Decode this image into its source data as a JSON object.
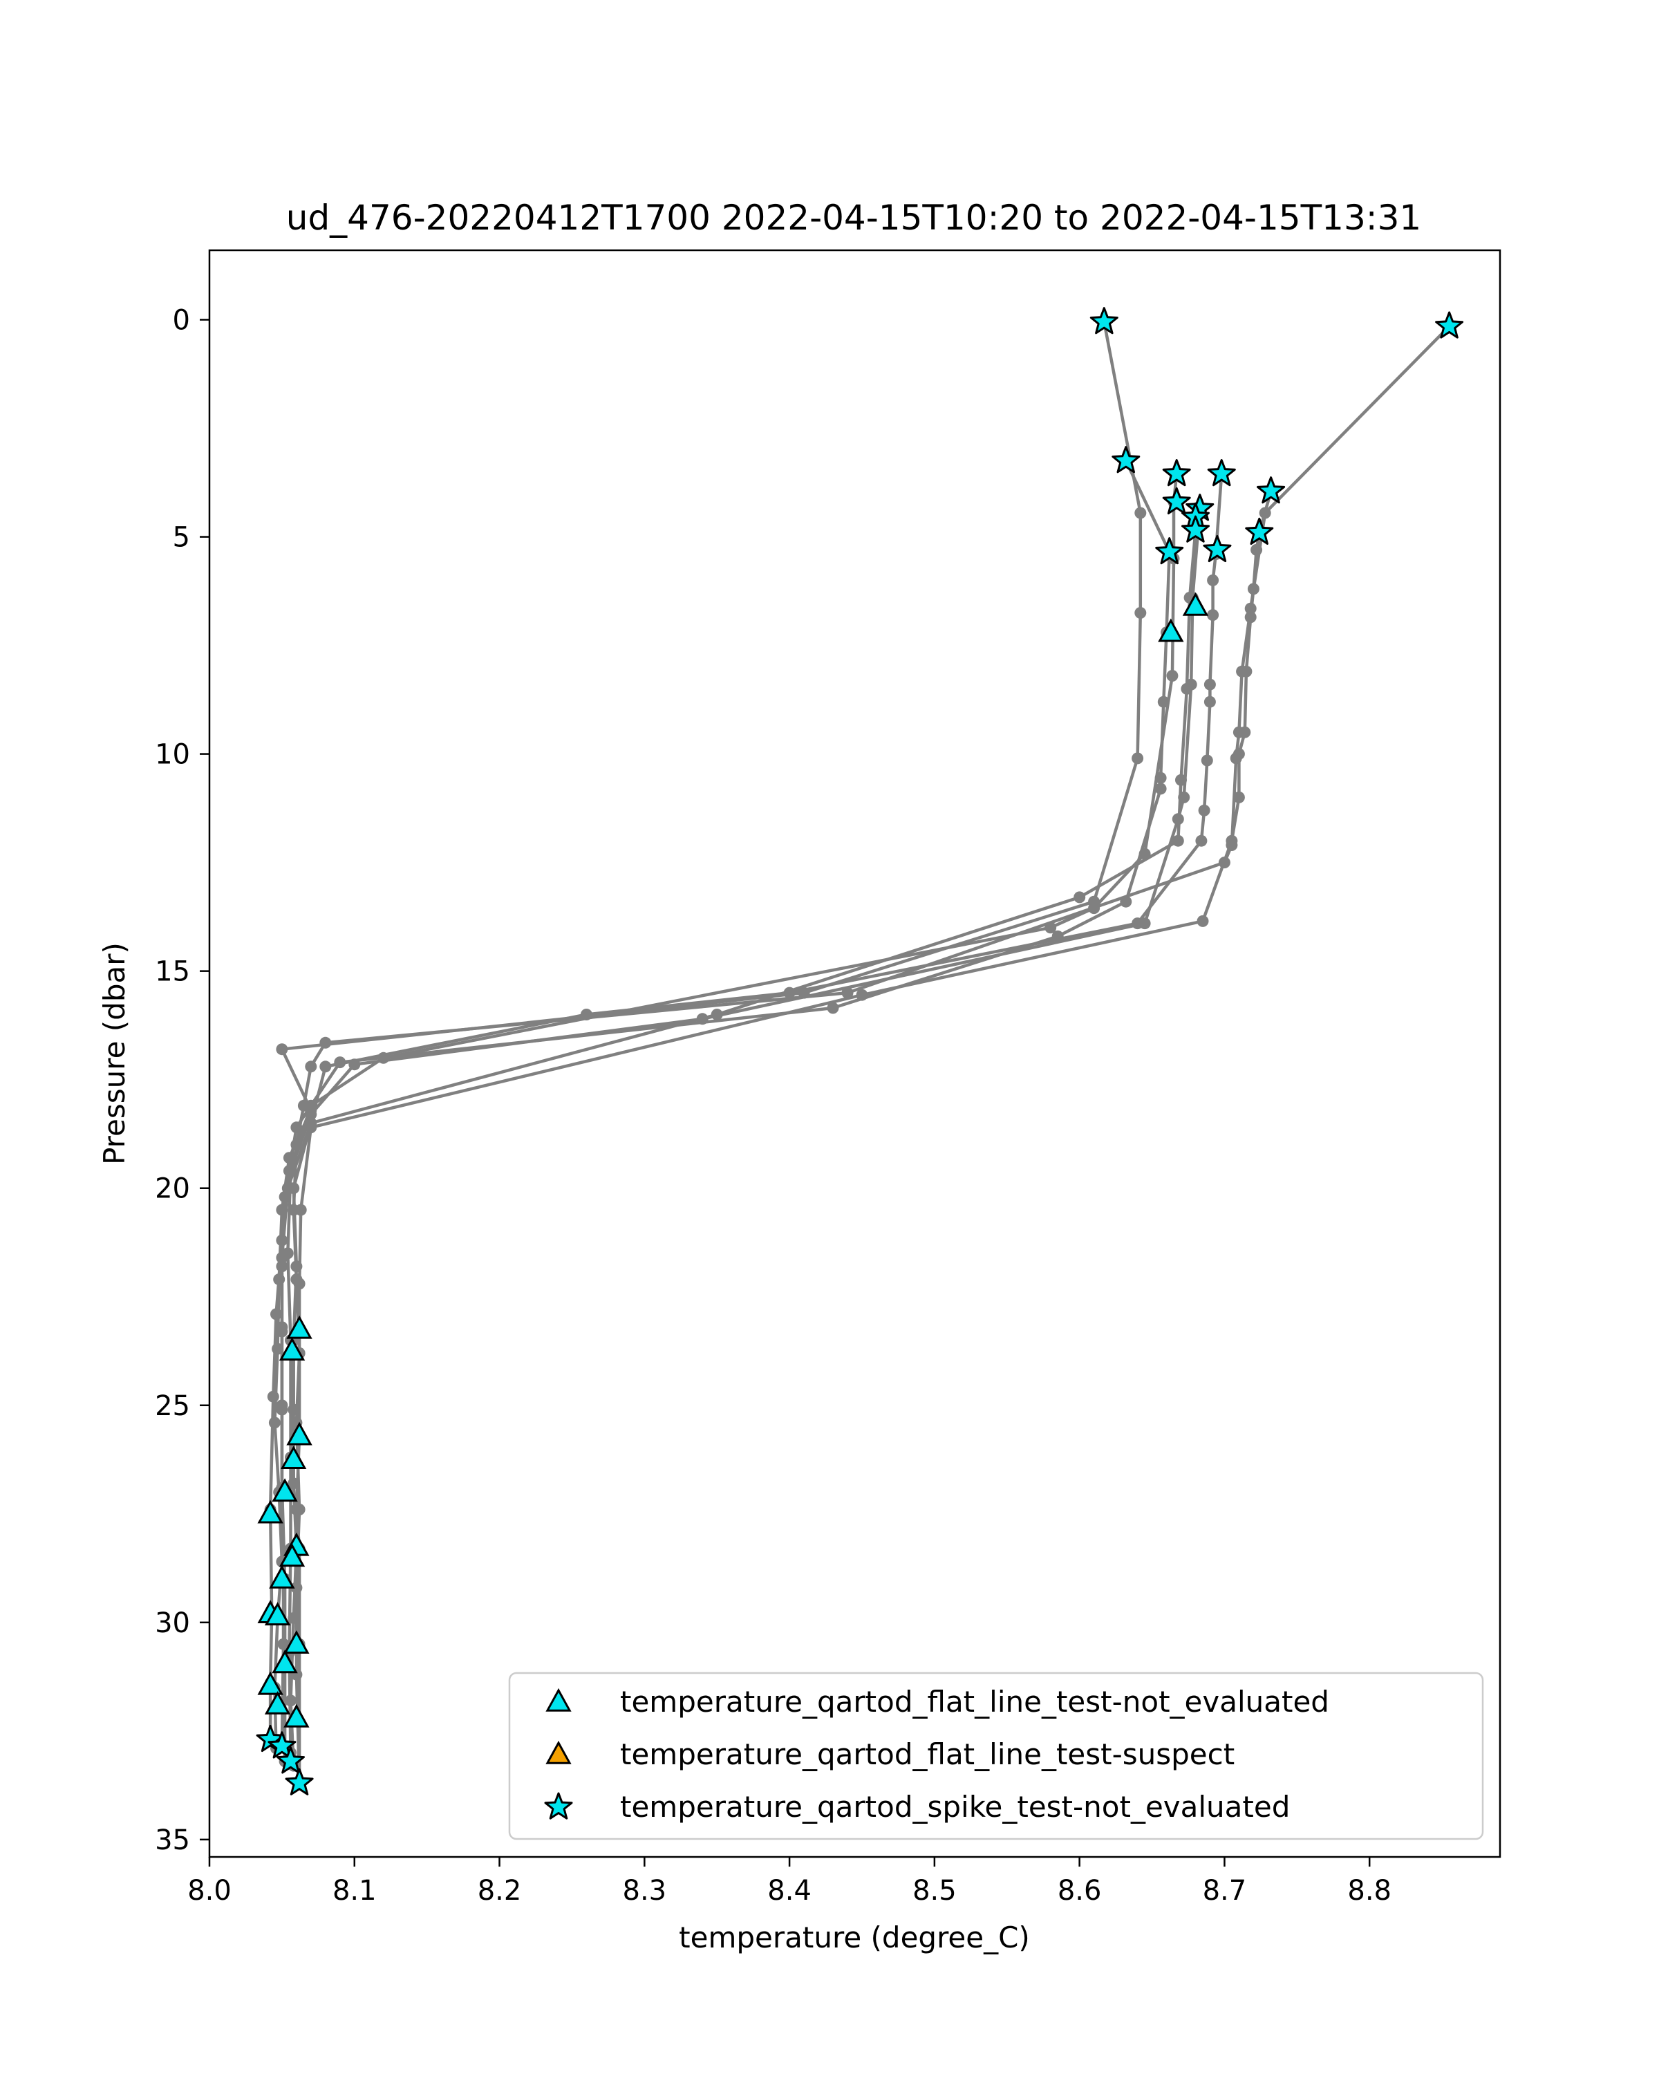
{
  "colors": {
    "line": "#808080",
    "marker_fill": "#00e5ee",
    "suspect_fill": "#f5a100",
    "marker_edge": "#000000"
  },
  "chart_data": {
    "type": "line",
    "title": "ud_476-20220412T1700 2022-04-15T10:20 to 2022-04-15T13:31",
    "xlabel": "temperature (degree_C)",
    "ylabel": "Pressure (dbar)",
    "xlim": [
      8.0,
      8.89
    ],
    "ylim": [
      35.4,
      -1.6
    ],
    "y_inverted": true,
    "xticks": [
      "8.0",
      "8.1",
      "8.2",
      "8.3",
      "8.4",
      "8.5",
      "8.6",
      "8.7",
      "8.8"
    ],
    "yticks": [
      "0",
      "5",
      "10",
      "15",
      "20",
      "25",
      "30",
      "35"
    ],
    "grid": false,
    "legend_position": "lower-right",
    "legend": [
      {
        "label": "temperature_qartod_flat_line_test-not_evaluated",
        "marker": "triangle",
        "color": "#00e5ee"
      },
      {
        "label": "temperature_qartod_flat_line_test-suspect",
        "marker": "triangle",
        "color": "#f5a100"
      },
      {
        "label": "temperature_qartod_spike_test-not_evaluated",
        "marker": "star",
        "color": "#00e5ee"
      }
    ],
    "profiles": [
      {
        "points": [
          [
            8.617,
            0.05
          ],
          [
            8.642,
            4.45
          ],
          [
            8.642,
            6.75
          ],
          [
            8.64,
            10.1
          ],
          [
            8.61,
            13.4
          ],
          [
            8.41,
            15.5
          ],
          [
            8.05,
            16.8
          ],
          [
            8.07,
            18.2
          ],
          [
            8.055,
            19.3
          ],
          [
            8.05,
            20.5
          ],
          [
            8.048,
            22.1
          ],
          [
            8.047,
            23.7
          ],
          [
            8.045,
            25.4
          ],
          [
            8.048,
            27.0
          ],
          [
            8.05,
            28.6
          ],
          [
            8.047,
            29.9
          ],
          [
            8.045,
            31.5
          ],
          [
            8.046,
            32.9
          ]
        ]
      },
      {
        "points": [
          [
            8.855,
            0.15
          ],
          [
            8.728,
            4.45
          ],
          [
            8.718,
            6.65
          ],
          [
            8.712,
            8.1
          ],
          [
            8.71,
            9.5
          ],
          [
            8.708,
            10.1
          ],
          [
            8.705,
            12.1
          ],
          [
            8.7,
            12.5
          ],
          [
            8.44,
            15.5
          ],
          [
            8.08,
            16.65
          ],
          [
            8.07,
            17.2
          ],
          [
            8.065,
            18.1
          ],
          [
            8.06,
            19.0
          ],
          [
            8.058,
            20.5
          ],
          [
            8.06,
            22.1
          ],
          [
            8.062,
            23.8
          ],
          [
            8.06,
            25.4
          ],
          [
            8.062,
            27.4
          ],
          [
            8.06,
            29.2
          ],
          [
            8.06,
            31.2
          ],
          [
            8.062,
            33.7
          ]
        ]
      },
      {
        "points": [
          [
            8.632,
            3.25
          ],
          [
            8.662,
            5.35
          ],
          [
            8.66,
            7.2
          ],
          [
            8.658,
            8.8
          ],
          [
            8.656,
            10.55
          ],
          [
            8.656,
            10.8
          ],
          [
            8.632,
            13.4
          ],
          [
            8.585,
            14.2
          ],
          [
            8.43,
            15.85
          ],
          [
            8.09,
            17.1
          ],
          [
            8.07,
            18.1
          ],
          [
            8.055,
            19.6
          ],
          [
            8.05,
            21.2
          ],
          [
            8.046,
            22.9
          ],
          [
            8.044,
            24.8
          ],
          [
            8.042,
            27.4
          ],
          [
            8.043,
            29.8
          ],
          [
            8.042,
            31.4
          ],
          [
            8.042,
            32.7
          ]
        ]
      },
      {
        "points": [
          [
            8.667,
            3.55
          ],
          [
            8.665,
            4.2
          ],
          [
            8.665,
            5.5
          ],
          [
            8.664,
            8.2
          ],
          [
            8.645,
            12.3
          ],
          [
            8.61,
            13.55
          ],
          [
            8.58,
            14.0
          ],
          [
            8.12,
            17.0
          ],
          [
            8.07,
            18.1
          ],
          [
            8.06,
            18.6
          ],
          [
            8.052,
            20.2
          ],
          [
            8.05,
            21.8
          ],
          [
            8.05,
            23.3
          ],
          [
            8.05,
            25.0
          ],
          [
            8.05,
            26.9
          ],
          [
            8.052,
            29.0
          ],
          [
            8.052,
            31.0
          ],
          [
            8.052,
            33.2
          ]
        ]
      },
      {
        "points": [
          [
            8.698,
            3.55
          ],
          [
            8.694,
            5.4
          ],
          [
            8.692,
            6.0
          ],
          [
            8.692,
            6.8
          ],
          [
            8.69,
            8.4
          ],
          [
            8.69,
            8.8
          ],
          [
            8.688,
            10.15
          ],
          [
            8.686,
            11.3
          ],
          [
            8.684,
            12.0
          ],
          [
            8.64,
            13.9
          ],
          [
            8.4,
            15.5
          ],
          [
            8.26,
            16.0
          ],
          [
            8.08,
            17.2
          ],
          [
            8.07,
            18.5
          ],
          [
            8.058,
            20.0
          ],
          [
            8.06,
            21.8
          ],
          [
            8.058,
            23.5
          ],
          [
            8.058,
            25.1
          ],
          [
            8.058,
            26.8
          ],
          [
            8.06,
            28.3
          ],
          [
            8.058,
            29.9
          ],
          [
            8.056,
            31.8
          ],
          [
            8.058,
            33.3
          ]
        ]
      },
      {
        "points": [
          [
            8.732,
            3.95
          ],
          [
            8.724,
            4.9
          ],
          [
            8.722,
            5.3
          ],
          [
            8.72,
            6.2
          ],
          [
            8.718,
            6.85
          ],
          [
            8.715,
            8.1
          ],
          [
            8.714,
            9.5
          ],
          [
            8.71,
            10.0
          ],
          [
            8.71,
            11.0
          ],
          [
            8.705,
            12.0
          ],
          [
            8.685,
            13.85
          ],
          [
            8.45,
            15.55
          ],
          [
            8.07,
            18.6
          ],
          [
            8.063,
            20.5
          ],
          [
            8.062,
            22.2
          ],
          [
            8.062,
            23.8
          ],
          [
            8.062,
            25.7
          ],
          [
            8.06,
            27.4
          ],
          [
            8.062,
            28.3
          ],
          [
            8.062,
            30.5
          ],
          [
            8.062,
            33.7
          ]
        ]
      },
      {
        "points": [
          [
            8.683,
            4.35
          ],
          [
            8.678,
            6.4
          ],
          [
            8.677,
            8.4
          ],
          [
            8.672,
            11.0
          ],
          [
            8.668,
            11.5
          ],
          [
            8.645,
            13.9
          ],
          [
            8.34,
            16.1
          ],
          [
            8.1,
            17.15
          ],
          [
            8.07,
            18.3
          ],
          [
            8.056,
            19.6
          ],
          [
            8.054,
            21.5
          ],
          [
            8.056,
            23.5
          ],
          [
            8.056,
            26.2
          ],
          [
            8.056,
            28.3
          ],
          [
            8.055,
            30.7
          ],
          [
            8.056,
            33.0
          ]
        ]
      },
      {
        "points": [
          [
            8.68,
            4.85
          ],
          [
            8.676,
            6.4
          ],
          [
            8.674,
            8.5
          ],
          [
            8.67,
            10.6
          ],
          [
            8.668,
            12.0
          ],
          [
            8.6,
            13.3
          ],
          [
            8.35,
            16.0
          ],
          [
            8.07,
            18.5
          ],
          [
            8.054,
            20.0
          ],
          [
            8.05,
            21.6
          ],
          [
            8.05,
            23.2
          ],
          [
            8.05,
            25.1
          ],
          [
            8.05,
            26.9
          ],
          [
            8.051,
            28.6
          ],
          [
            8.051,
            30.5
          ],
          [
            8.05,
            32.8
          ]
        ]
      }
    ],
    "flat_line_not_evaluated": [
      [
        8.663,
        7.2
      ],
      [
        8.68,
        6.6
      ],
      [
        8.062,
        23.25
      ],
      [
        8.057,
        23.75
      ],
      [
        8.062,
        25.7
      ],
      [
        8.058,
        26.25
      ],
      [
        8.052,
        27.0
      ],
      [
        8.042,
        27.5
      ],
      [
        8.06,
        28.25
      ],
      [
        8.057,
        28.5
      ],
      [
        8.05,
        29.0
      ],
      [
        8.042,
        29.8
      ],
      [
        8.047,
        29.85
      ],
      [
        8.06,
        30.5
      ],
      [
        8.052,
        30.95
      ],
      [
        8.042,
        31.45
      ],
      [
        8.047,
        31.9
      ],
      [
        8.06,
        32.2
      ]
    ],
    "flat_line_suspect": [],
    "spike_not_evaluated": [
      [
        8.617,
        0.05
      ],
      [
        8.855,
        0.15
      ],
      [
        8.632,
        3.25
      ],
      [
        8.667,
        3.55
      ],
      [
        8.698,
        3.55
      ],
      [
        8.732,
        3.95
      ],
      [
        8.667,
        4.2
      ],
      [
        8.683,
        4.35
      ],
      [
        8.68,
        4.55
      ],
      [
        8.68,
        4.85
      ],
      [
        8.724,
        4.9
      ],
      [
        8.695,
        5.3
      ],
      [
        8.662,
        5.35
      ],
      [
        8.042,
        32.7
      ],
      [
        8.05,
        32.85
      ],
      [
        8.056,
        33.2
      ],
      [
        8.062,
        33.7
      ]
    ]
  }
}
